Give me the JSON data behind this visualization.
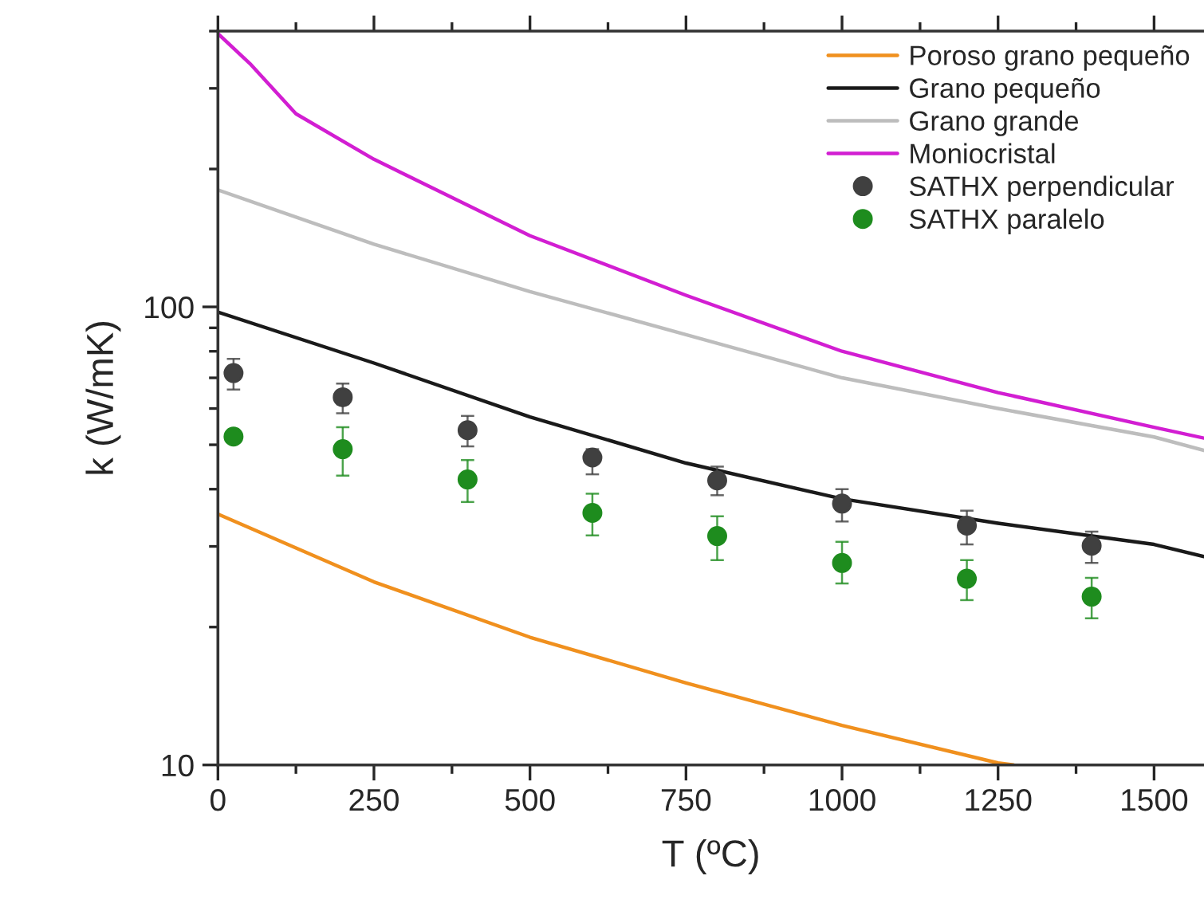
{
  "chart_data": {
    "type": "line",
    "xlabel": "T (ºC)",
    "ylabel": "k (W/mK)",
    "log": "y",
    "xlim": [
      0,
      1580
    ],
    "xticks": [
      0,
      250,
      500,
      750,
      1000,
      1250,
      1500
    ],
    "ylim": [
      10,
      400
    ],
    "yticks": [
      10,
      100
    ],
    "grid": false,
    "legend": "top right",
    "line_style": "solid",
    "series": [
      {
        "name": "Poroso grano pequeño",
        "color": "#f0901e",
        "x": [
          0,
          250,
          500,
          750,
          1000,
          1250,
          1275
        ],
        "values": [
          35.3,
          25.1,
          19.0,
          15.1,
          12.2,
          10.1,
          10
        ]
      },
      {
        "name": "Grano pequeño",
        "color": "#1a1a1a",
        "x": [
          0,
          250,
          500,
          750,
          1000,
          1250,
          1500,
          1580
        ],
        "values": [
          97.4,
          75.4,
          57.5,
          45.6,
          38.1,
          33.7,
          30.3,
          28.5
        ]
      },
      {
        "name": "Grano grande",
        "color": "#bdbdbd",
        "x": [
          0,
          250,
          500,
          750,
          1000,
          1250,
          1500,
          1580
        ],
        "values": [
          180,
          137,
          108,
          87,
          70,
          60,
          52,
          48.6
        ]
      },
      {
        "name": "Moniocristal",
        "color": "#d21ed2",
        "x": [
          0,
          51,
          125,
          250,
          500,
          750,
          1000,
          1250,
          1500,
          1580
        ],
        "values": [
          395,
          340,
          264,
          210,
          143,
          106,
          80,
          65,
          54.6,
          51.7
        ]
      },
      {
        "name": "SATHX perpendicular",
        "type": "scatter",
        "marker": "circle",
        "color": "#404040",
        "x": [
          25,
          200,
          400,
          600,
          800,
          1000,
          1200,
          1400
        ],
        "values": [
          71.7,
          63.5,
          53.8,
          46.9,
          41.8,
          37.2,
          33.3,
          30.1
        ],
        "errors": [
          [
            66,
            77
          ],
          [
            58.6,
            68
          ],
          [
            49.6,
            57.8
          ],
          [
            43.1,
            48.9
          ],
          [
            38.8,
            44.8
          ],
          [
            34,
            40
          ],
          [
            30.3,
            35.9
          ],
          [
            27.6,
            32.3
          ]
        ]
      },
      {
        "name": "SATHX paralelo",
        "type": "scatter",
        "marker": "circle",
        "color": "#1e8c1e",
        "x": [
          25,
          200,
          400,
          600,
          800,
          1000,
          1200,
          1400
        ],
        "values": [
          52.1,
          48.9,
          42.0,
          35.5,
          31.6,
          27.6,
          25.5,
          23.3
        ],
        "errors": [
          null,
          [
            42.8,
            54.6
          ],
          [
            37.5,
            46.3
          ],
          [
            31.7,
            39.1
          ],
          [
            28.0,
            34.9
          ],
          [
            24.9,
            30.7
          ],
          [
            22.9,
            28.0
          ],
          [
            20.9,
            25.6
          ]
        ]
      }
    ]
  }
}
